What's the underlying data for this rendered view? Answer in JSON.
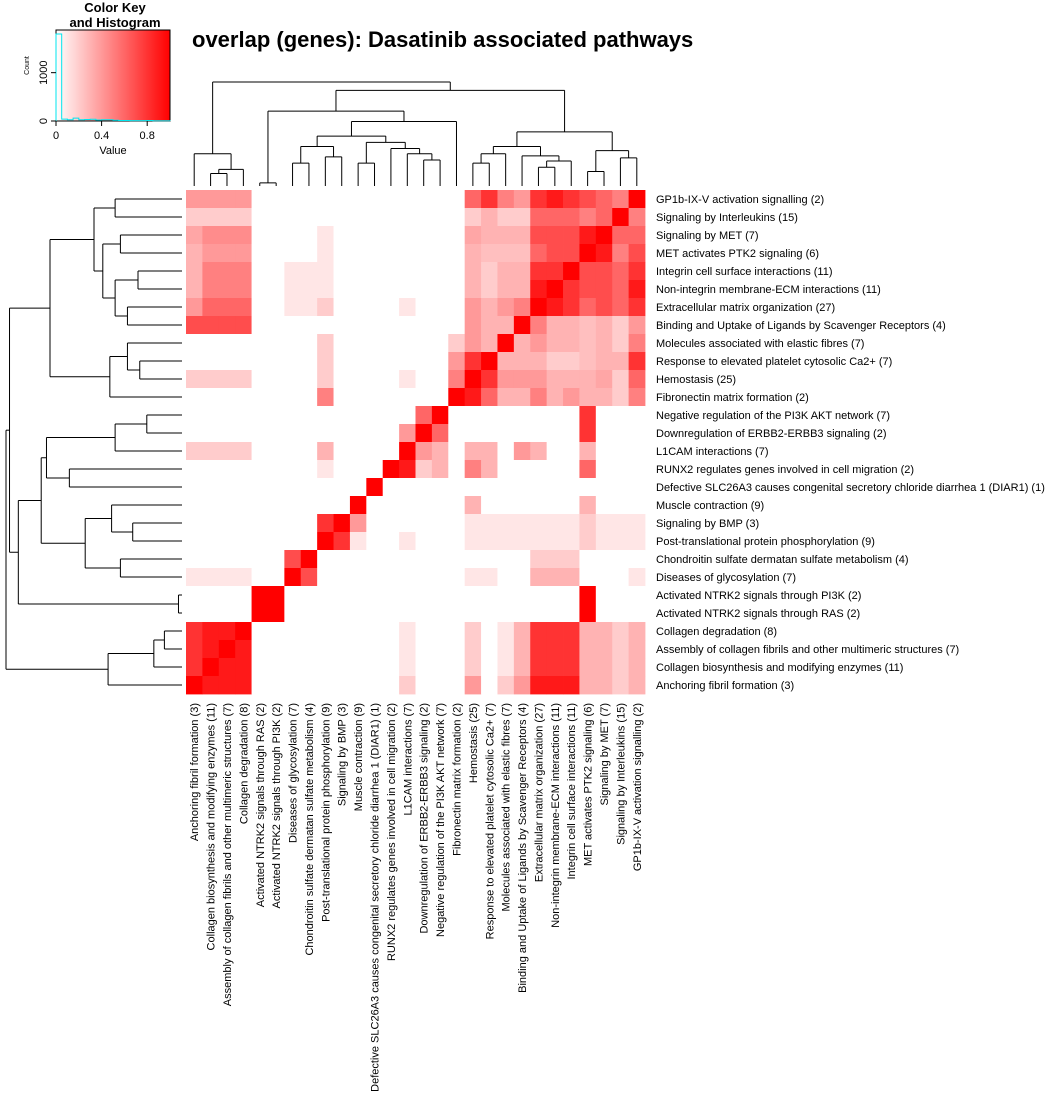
{
  "title": "overlap (genes): Dasatinib associated pathways",
  "color_key": {
    "title_line1": "Color Key",
    "title_line2": "and Histogram",
    "xlabel": "Value",
    "ylabel": "Count",
    "x_ticks": [
      "0",
      "0.4",
      "0.8"
    ],
    "y_ticks": [
      "0",
      "1000"
    ],
    "x_range": [
      0,
      1
    ],
    "gradient_colors": [
      "#ffffff",
      "#ff0000"
    ],
    "histogram_color": "#00e5ee"
  },
  "chart_data": {
    "type": "heatmap",
    "title": "overlap (genes): Dasatinib associated pathways",
    "value_range": [
      0,
      1
    ],
    "colors": {
      "low": "#ffffff",
      "high": "#ff0000"
    },
    "row_labels": [
      "GP1b-IX-V activation signalling (2)",
      "Signaling by Interleukins (15)",
      "Signaling by MET (7)",
      "MET activates PTK2 signaling (6)",
      "Integrin cell surface interactions (11)",
      "Non-integrin membrane-ECM interactions (11)",
      "Extracellular matrix organization (27)",
      "Binding and Uptake of Ligands by Scavenger Receptors (4)",
      "Molecules associated with elastic fibres (7)",
      "Response to elevated platelet cytosolic Ca2+ (7)",
      "Hemostasis (25)",
      "Fibronectin matrix formation (2)",
      "Negative regulation of the PI3K AKT network (7)",
      "Downregulation of ERBB2-ERBB3 signaling (2)",
      "L1CAM interactions (7)",
      "RUNX2 regulates genes involved in cell migration (2)",
      "Defective SLC26A3 causes congenital secretory chloride diarrhea 1 (DIAR1) (1)",
      "Muscle contraction (9)",
      "Signaling by BMP (3)",
      "Post-translational protein phosphorylation (9)",
      "Chondroitin sulfate dermatan sulfate metabolism (4)",
      "Diseases of glycosylation (7)",
      "Activated NTRK2 signals through PI3K (2)",
      "Activated NTRK2 signals through RAS (2)",
      "Collagen degradation (8)",
      "Assembly of collagen fibrils and other multimeric structures (7)",
      "Collagen biosynthesis and modifying enzymes (11)",
      "Anchoring fibril formation (3)"
    ],
    "col_labels": [
      "Anchoring fibril formation (3)",
      "Collagen biosynthesis and modifying enzymes (11)",
      "Assembly of collagen fibrils and other multimeric structures (7)",
      "Collagen degradation (8)",
      "Activated NTRK2 signals through RAS (2)",
      "Activated NTRK2 signals through PI3K (2)",
      "Diseases of glycosylation (7)",
      "Chondroitin sulfate dermatan sulfate metabolism (4)",
      "Post-translational protein phosphorylation (9)",
      "Signaling by BMP (3)",
      "Muscle contraction (9)",
      "Defective SLC26A3 causes congenital secretory chloride diarrhea 1 (DIAR1) (1)",
      "RUNX2 regulates genes involved in cell migration (2)",
      "L1CAM interactions (7)",
      "Downregulation of ERBB2-ERBB3 signaling (2)",
      "Negative regulation of the PI3K AKT network (7)",
      "Fibronectin matrix formation (2)",
      "Hemostasis (25)",
      "Response to elevated platelet cytosolic Ca2+ (7)",
      "Molecules associated with elastic fibres (7)",
      "Binding and Uptake of Ligands by Scavenger Receptors (4)",
      "Extracellular matrix organization (27)",
      "Non-integrin membrane-ECM interactions (11)",
      "Integrin cell surface interactions (11)",
      "MET activates PTK2 signaling (6)",
      "Signaling by MET (7)",
      "Signaling by Interleukins (15)",
      "GP1b-IX-V activation signalling (2)"
    ],
    "values": [
      [
        0.4,
        0.4,
        0.4,
        0.4,
        0,
        0,
        0,
        0,
        0,
        0,
        0,
        0,
        0,
        0,
        0,
        0,
        0,
        0.6,
        0.8,
        0.5,
        0.4,
        0.8,
        0.9,
        0.8,
        0.7,
        0.6,
        0.5,
        1.0
      ],
      [
        0.2,
        0.2,
        0.2,
        0.2,
        0,
        0,
        0,
        0,
        0,
        0,
        0,
        0,
        0,
        0,
        0,
        0,
        0,
        0.2,
        0.3,
        0.2,
        0.2,
        0.6,
        0.6,
        0.6,
        0.5,
        0.6,
        1.0,
        0.5
      ],
      [
        0.35,
        0.45,
        0.45,
        0.45,
        0,
        0,
        0,
        0,
        0.1,
        0,
        0,
        0,
        0,
        0,
        0,
        0,
        0,
        0.35,
        0.3,
        0.3,
        0.3,
        0.7,
        0.7,
        0.7,
        0.9,
        1.0,
        0.6,
        0.6
      ],
      [
        0.3,
        0.4,
        0.4,
        0.4,
        0,
        0,
        0,
        0,
        0.1,
        0,
        0,
        0,
        0,
        0,
        0,
        0,
        0,
        0.3,
        0.25,
        0.25,
        0.25,
        0.6,
        0.7,
        0.7,
        1.0,
        0.9,
        0.5,
        0.7
      ],
      [
        0.3,
        0.5,
        0.5,
        0.5,
        0,
        0,
        0.1,
        0.1,
        0.1,
        0,
        0,
        0,
        0,
        0,
        0,
        0,
        0,
        0.3,
        0.2,
        0.3,
        0.3,
        0.8,
        0.8,
        1.0,
        0.7,
        0.7,
        0.6,
        0.8
      ],
      [
        0.3,
        0.5,
        0.5,
        0.5,
        0,
        0,
        0.1,
        0.1,
        0.1,
        0,
        0,
        0,
        0,
        0,
        0,
        0,
        0,
        0.3,
        0.2,
        0.3,
        0.3,
        0.9,
        1.0,
        0.8,
        0.7,
        0.7,
        0.6,
        0.9
      ],
      [
        0.4,
        0.6,
        0.6,
        0.6,
        0,
        0,
        0.1,
        0.1,
        0.2,
        0,
        0,
        0,
        0,
        0.1,
        0,
        0,
        0,
        0.4,
        0.3,
        0.4,
        0.5,
        1.0,
        0.9,
        0.8,
        0.6,
        0.7,
        0.6,
        0.8
      ],
      [
        0.7,
        0.7,
        0.7,
        0.7,
        0,
        0,
        0,
        0,
        0,
        0,
        0,
        0,
        0,
        0,
        0,
        0,
        0,
        0.4,
        0.3,
        0.3,
        1.0,
        0.5,
        0.3,
        0.3,
        0.25,
        0.3,
        0.2,
        0.4
      ],
      [
        0,
        0,
        0,
        0,
        0,
        0,
        0,
        0,
        0.2,
        0,
        0,
        0,
        0,
        0,
        0,
        0,
        0.2,
        0.4,
        0.3,
        1.0,
        0.3,
        0.4,
        0.3,
        0.3,
        0.25,
        0.3,
        0.2,
        0.5
      ],
      [
        0,
        0,
        0,
        0,
        0,
        0,
        0,
        0,
        0.2,
        0,
        0,
        0,
        0,
        0,
        0,
        0,
        0.4,
        0.8,
        1.0,
        0.3,
        0.3,
        0.3,
        0.2,
        0.2,
        0.25,
        0.3,
        0.3,
        0.8
      ],
      [
        0.2,
        0.2,
        0.2,
        0.2,
        0,
        0,
        0,
        0,
        0.2,
        0,
        0,
        0,
        0,
        0.1,
        0,
        0,
        0.5,
        1.0,
        0.8,
        0.4,
        0.4,
        0.4,
        0.3,
        0.3,
        0.3,
        0.35,
        0.2,
        0.6
      ],
      [
        0,
        0,
        0,
        0,
        0,
        0,
        0,
        0,
        0.5,
        0,
        0,
        0,
        0,
        0,
        0,
        0,
        1.0,
        0.9,
        0.6,
        0.3,
        0.3,
        0.5,
        0.3,
        0.4,
        0.3,
        0.3,
        0.2,
        0.5
      ],
      [
        0,
        0,
        0,
        0,
        0,
        0,
        0,
        0,
        0,
        0,
        0,
        0,
        0,
        0,
        0.6,
        1.0,
        0,
        0,
        0,
        0,
        0,
        0,
        0,
        0,
        0.8,
        0,
        0,
        0
      ],
      [
        0,
        0,
        0,
        0,
        0,
        0,
        0,
        0,
        0,
        0,
        0,
        0,
        0,
        0.4,
        1.0,
        0.6,
        0,
        0,
        0,
        0,
        0,
        0,
        0,
        0,
        0.8,
        0,
        0,
        0
      ],
      [
        0.2,
        0.2,
        0.2,
        0.2,
        0,
        0,
        0,
        0,
        0.3,
        0,
        0,
        0,
        0,
        1.0,
        0.4,
        0.3,
        0,
        0.3,
        0.3,
        0,
        0.4,
        0.3,
        0,
        0,
        0.3,
        0,
        0,
        0
      ],
      [
        0,
        0,
        0,
        0,
        0,
        0,
        0,
        0,
        0.1,
        0,
        0,
        0,
        1.0,
        0.9,
        0.2,
        0.3,
        0,
        0.5,
        0.3,
        0,
        0,
        0,
        0,
        0,
        0.6,
        0,
        0,
        0
      ],
      [
        0,
        0,
        0,
        0,
        0,
        0,
        0,
        0,
        0,
        0,
        0,
        1.0,
        0,
        0,
        0,
        0,
        0,
        0,
        0,
        0,
        0,
        0,
        0,
        0,
        0,
        0,
        0,
        0
      ],
      [
        0,
        0,
        0,
        0,
        0,
        0,
        0,
        0,
        0,
        0,
        1.0,
        0,
        0,
        0,
        0,
        0,
        0,
        0.3,
        0,
        0,
        0,
        0,
        0,
        0,
        0.3,
        0,
        0,
        0
      ],
      [
        0,
        0,
        0,
        0,
        0,
        0,
        0,
        0,
        0.8,
        1.0,
        0.4,
        0,
        0,
        0,
        0,
        0,
        0,
        0.1,
        0.1,
        0.1,
        0.1,
        0.1,
        0.1,
        0.1,
        0.2,
        0.1,
        0.1,
        0.1
      ],
      [
        0,
        0,
        0,
        0,
        0,
        0,
        0,
        0,
        1.0,
        0.8,
        0.1,
        0,
        0,
        0.1,
        0,
        0,
        0,
        0.1,
        0.1,
        0.1,
        0.1,
        0.1,
        0.1,
        0.1,
        0.2,
        0.1,
        0.1,
        0.1
      ],
      [
        0,
        0,
        0,
        0,
        0,
        0,
        0.7,
        1.0,
        0,
        0,
        0,
        0,
        0,
        0,
        0,
        0,
        0,
        0,
        0,
        0,
        0,
        0.2,
        0.2,
        0.2,
        0,
        0,
        0,
        0
      ],
      [
        0.1,
        0.1,
        0.1,
        0.1,
        0,
        0,
        1.0,
        0.7,
        0,
        0,
        0,
        0,
        0,
        0,
        0,
        0,
        0,
        0.1,
        0.1,
        0,
        0,
        0.3,
        0.3,
        0.3,
        0,
        0,
        0,
        0.1
      ],
      [
        0,
        0,
        0,
        0,
        1.0,
        1.0,
        0,
        0,
        0,
        0,
        0,
        0,
        0,
        0,
        0,
        0,
        0,
        0,
        0,
        0,
        0,
        0,
        0,
        0,
        1.0,
        0,
        0,
        0
      ],
      [
        0,
        0,
        0,
        0,
        1.0,
        1.0,
        0,
        0,
        0,
        0,
        0,
        0,
        0,
        0,
        0,
        0,
        0,
        0,
        0,
        0,
        0,
        0,
        0,
        0,
        1.0,
        0,
        0,
        0
      ],
      [
        0.8,
        0.9,
        0.9,
        1.0,
        0,
        0,
        0,
        0,
        0,
        0,
        0,
        0,
        0,
        0.1,
        0,
        0,
        0,
        0.2,
        0,
        0.1,
        0.3,
        0.8,
        0.8,
        0.8,
        0.3,
        0.3,
        0.2,
        0.3
      ],
      [
        0.8,
        0.9,
        1.0,
        0.9,
        0,
        0,
        0,
        0,
        0,
        0,
        0,
        0,
        0,
        0.1,
        0,
        0,
        0,
        0.2,
        0,
        0.1,
        0.3,
        0.8,
        0.8,
        0.8,
        0.3,
        0.3,
        0.2,
        0.3
      ],
      [
        0.8,
        1.0,
        0.9,
        0.9,
        0,
        0,
        0,
        0,
        0,
        0,
        0,
        0,
        0,
        0.1,
        0,
        0,
        0,
        0.2,
        0,
        0.1,
        0.3,
        0.8,
        0.8,
        0.8,
        0.3,
        0.3,
        0.2,
        0.3
      ],
      [
        1.0,
        0.9,
        0.9,
        0.9,
        0,
        0,
        0,
        0,
        0,
        0,
        0,
        0,
        0,
        0.2,
        0,
        0,
        0,
        0.4,
        0,
        0.2,
        0.4,
        0.9,
        0.9,
        0.9,
        0.3,
        0.3,
        0.2,
        0.3
      ]
    ],
    "histogram": {
      "bins": [
        0,
        0.05,
        0.1,
        0.15,
        0.2,
        0.25,
        0.3,
        0.35,
        0.4,
        0.45,
        0.5,
        0.55,
        0.6,
        0.65,
        0.7,
        0.75,
        0.8,
        0.85,
        0.9,
        0.95,
        1.0
      ],
      "counts": [
        1800,
        40,
        25,
        60,
        25,
        30,
        35,
        20,
        25,
        25,
        15,
        10,
        10,
        8,
        8,
        8,
        10,
        6,
        6,
        6
      ],
      "ylim": [
        0,
        1800
      ]
    }
  }
}
